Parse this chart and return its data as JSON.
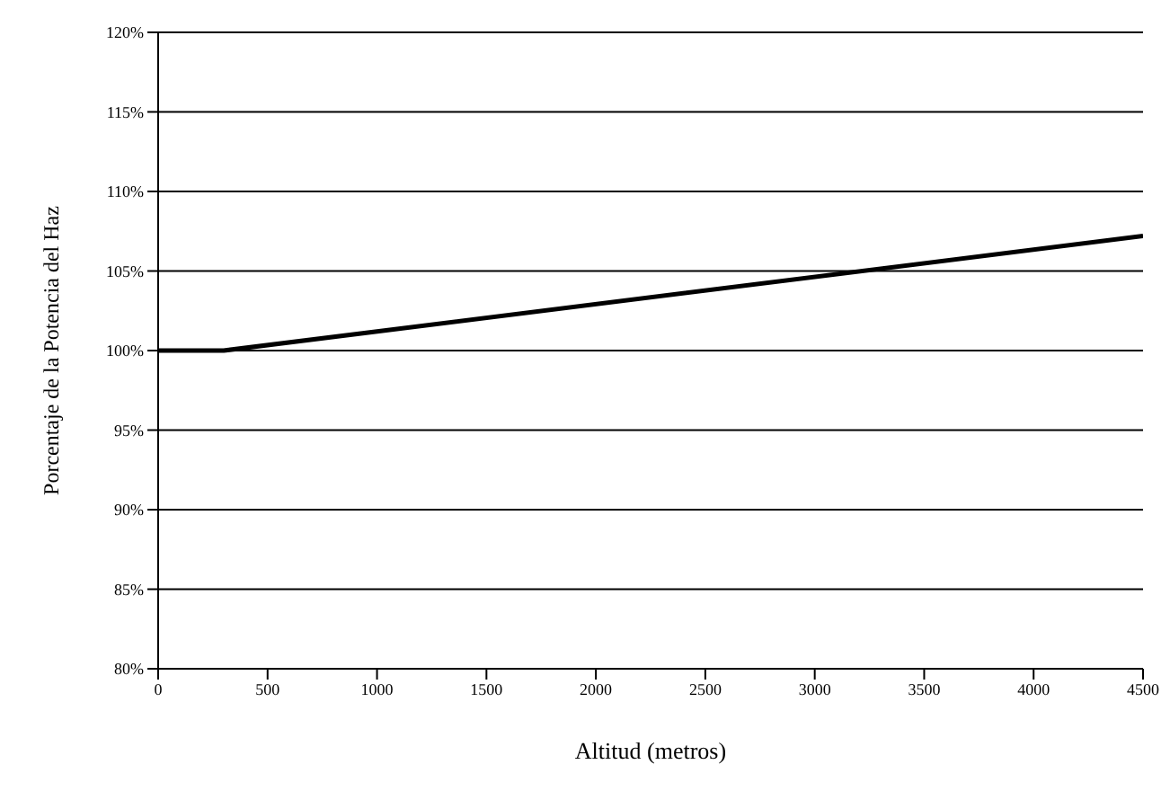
{
  "chart_data": {
    "type": "line",
    "xlabel": "Altitud (metros)",
    "ylabel": "Porcentaje de la Potencia del Haz",
    "x": [
      0,
      300,
      4500
    ],
    "series": [
      {
        "color": "#000000",
        "values": [
          100,
          100,
          107.2
        ]
      }
    ],
    "xlim": [
      0,
      4500
    ],
    "xticks": [
      0,
      500,
      1000,
      1500,
      2000,
      2500,
      3000,
      3500,
      4000,
      4500
    ],
    "ylim": [
      80,
      120
    ],
    "yticks": [
      {
        "value": 80,
        "label": "80%"
      },
      {
        "value": 85,
        "label": "85%"
      },
      {
        "value": 90,
        "label": "90%"
      },
      {
        "value": 95,
        "label": "95%"
      },
      {
        "value": 100,
        "label": "100%"
      },
      {
        "value": 105,
        "label": "105%"
      },
      {
        "value": 110,
        "label": "110%"
      },
      {
        "value": 115,
        "label": "115%"
      },
      {
        "value": 120,
        "label": "120%"
      }
    ],
    "grid": "y",
    "legend": false,
    "marker": "none",
    "line_style": "solid"
  }
}
